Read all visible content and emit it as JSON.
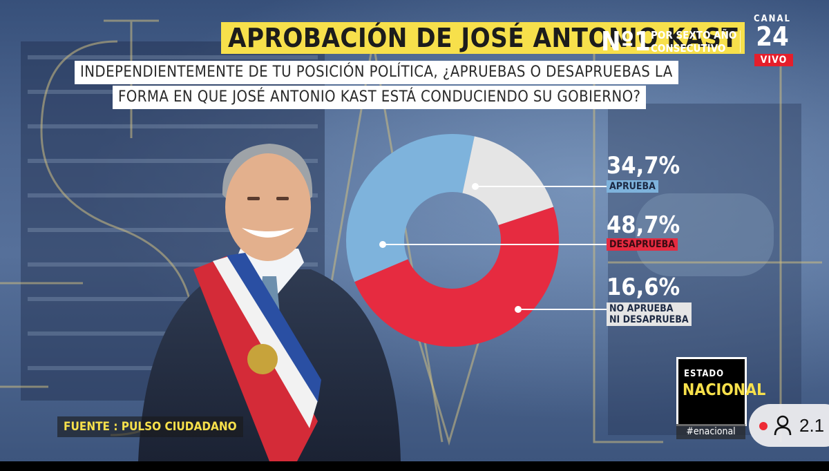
{
  "header": {
    "title": "APROBACIÓN DE JOSÉ ANTONIO KAST",
    "rank": "Nº1",
    "rank_subtitle_line1": "POR SEXTO AÑO",
    "rank_subtitle_line2": "CONSECUTIVO"
  },
  "channel": {
    "name": "CANAL",
    "number": "24",
    "live": "VIVO"
  },
  "question": {
    "line1": "INDEPENDIENTEMENTE DE TU POSICIÓN POLÍTICA, ¿APRUEBAS O DESAPRUEBAS LA",
    "line2": "FORMA EN QUE JOSÉ ANTONIO KAST ESTÁ CONDUCIENDO SU GOBIERNO?"
  },
  "chart_data": {
    "type": "pie",
    "title": "APROBACIÓN DE JOSÉ ANTONIO KAST",
    "donut": true,
    "slices": [
      {
        "name": "APRUEBA",
        "value": 34.7,
        "display": "34,7%",
        "color": "#7eb3dc"
      },
      {
        "name": "NO APRUEBA NI DESAPRUEBA",
        "value": 16.6,
        "display": "16,6%",
        "color": "#e5e5e5"
      },
      {
        "name": "DESAPRUEBA",
        "value": 48.7,
        "display": "48,7%",
        "color": "#e62b40"
      }
    ],
    "label_line2_third": "NI DESAPRUEBA",
    "label_line1_third": "NO APRUEBA"
  },
  "source": "FUENTE : PULSO CIUDADANO",
  "show": {
    "line1": "ESTADO",
    "line2": "NACIONAL",
    "hashtag": "#enacional"
  },
  "viewers": {
    "count": "2.1",
    "icon": "person-icon"
  }
}
